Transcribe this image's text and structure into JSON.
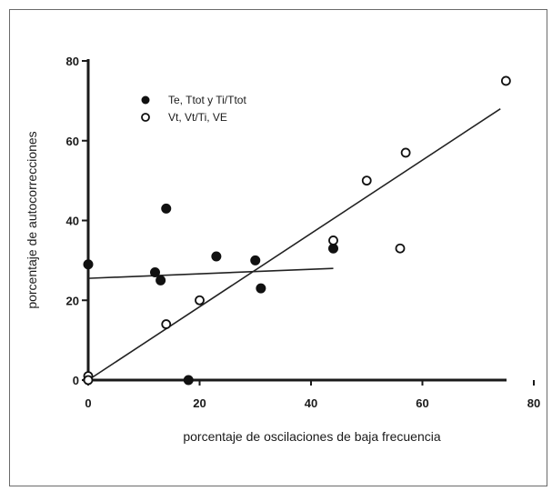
{
  "chart_data": {
    "type": "scatter",
    "xlabel": "porcentaje de oscilaciones de baja frecuencia",
    "ylabel": "porcentaje de autocorrecciones",
    "xlim": [
      0,
      80
    ],
    "ylim": [
      0,
      80
    ],
    "xticks": [
      "0",
      "20",
      "40",
      "60",
      "80"
    ],
    "yticks": [
      "0",
      "20",
      "40",
      "60",
      "80"
    ],
    "legend_position": "top-left",
    "series": [
      {
        "name": "Te, Ttot y Ti/Ttot",
        "marker": "filled-circle",
        "color": "#111111",
        "points": [
          [
            0,
            29
          ],
          [
            12,
            27
          ],
          [
            13,
            25
          ],
          [
            14,
            43
          ],
          [
            23,
            31
          ],
          [
            30,
            30
          ],
          [
            31,
            23
          ],
          [
            44,
            33
          ],
          [
            18,
            0
          ]
        ],
        "trendline": [
          [
            0,
            25.5
          ],
          [
            44,
            28
          ]
        ]
      },
      {
        "name": "Vt, Vt/Ti, VE",
        "marker": "open-circle",
        "color": "#111111",
        "points": [
          [
            0,
            1
          ],
          [
            0,
            0
          ],
          [
            14,
            14
          ],
          [
            20,
            20
          ],
          [
            44,
            35
          ],
          [
            50,
            50
          ],
          [
            56,
            33
          ],
          [
            57,
            57
          ],
          [
            75,
            75
          ]
        ],
        "trendline": [
          [
            0,
            0
          ],
          [
            74,
            68
          ]
        ]
      }
    ]
  }
}
